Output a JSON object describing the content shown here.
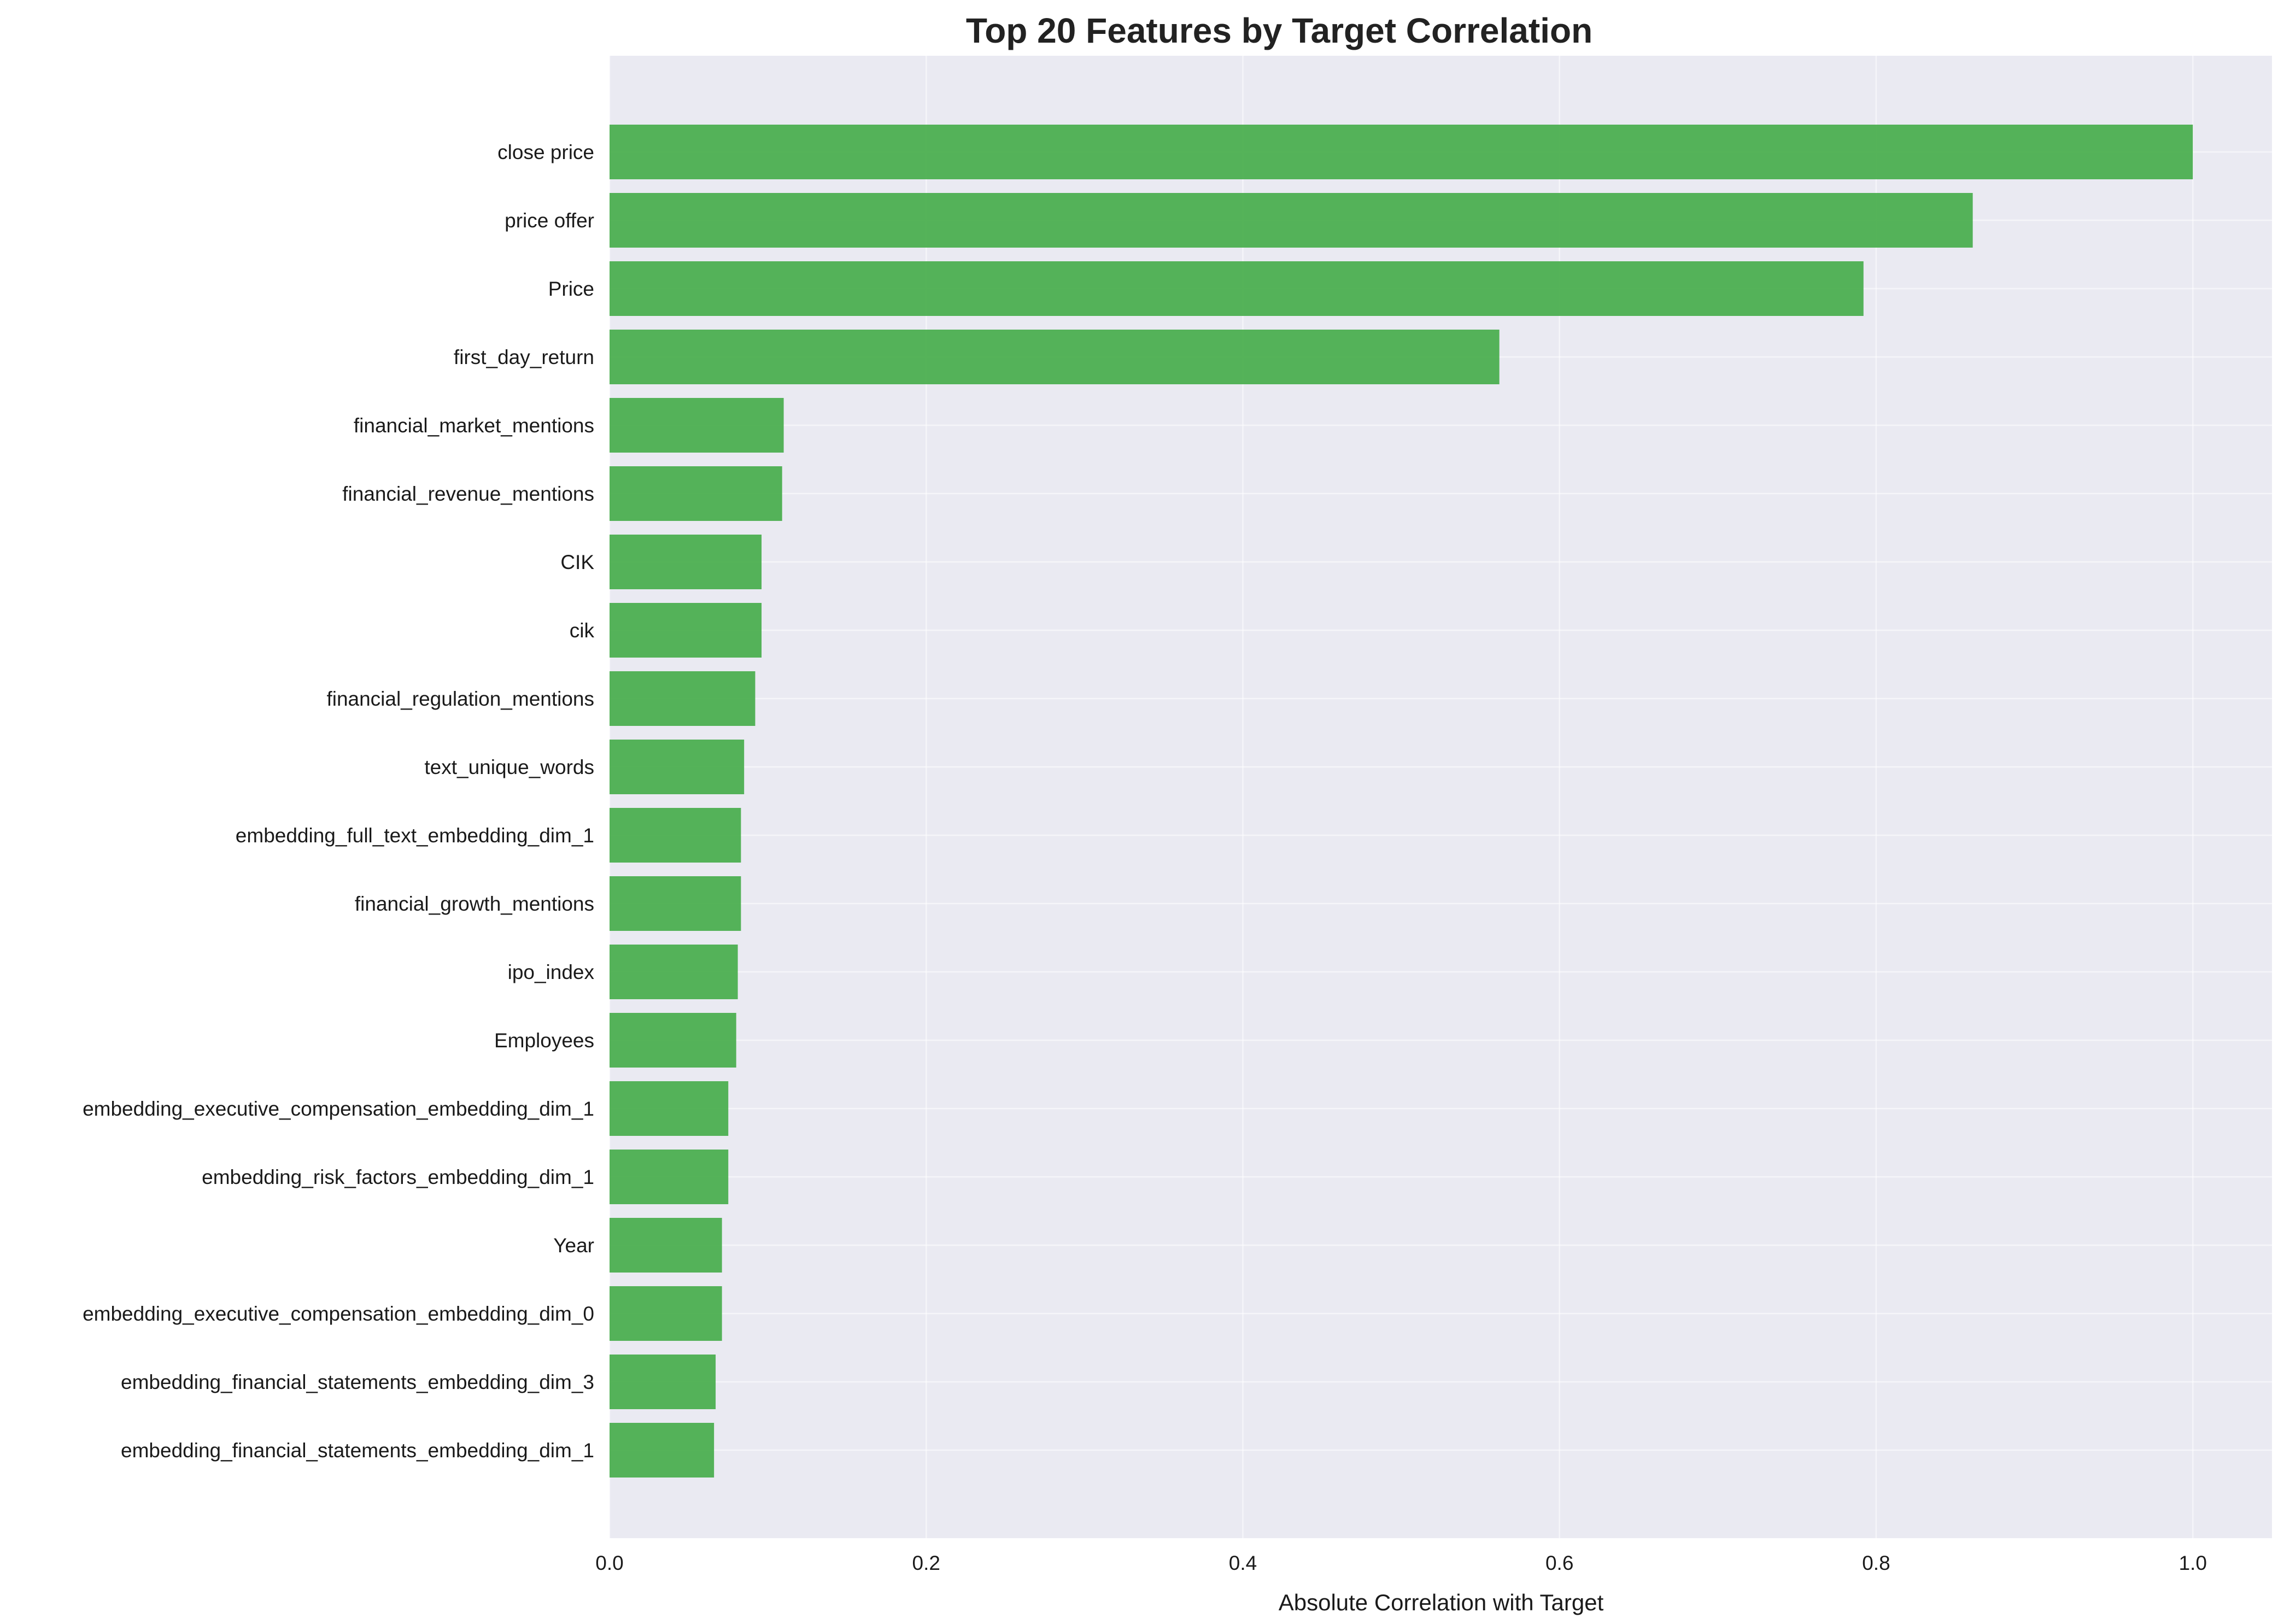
{
  "chart_data": {
    "type": "bar",
    "orientation": "horizontal",
    "title": "Top 20 Features by Target Correlation",
    "xlabel": "Absolute Correlation with Target",
    "ylabel": "",
    "xlim": [
      0,
      1.05
    ],
    "xticks": [
      "0.0",
      "0.2",
      "0.4",
      "0.6",
      "0.8",
      "1.0"
    ],
    "grid": true,
    "bar_color": "#4caf50",
    "background_color": "#eaeaf2",
    "categories": [
      "close price",
      "price offer",
      "Price",
      "first_day_return",
      "financial_market_mentions",
      "financial_revenue_mentions",
      "CIK",
      "cik",
      "financial_regulation_mentions",
      "text_unique_words",
      "embedding_full_text_embedding_dim_1",
      "financial_growth_mentions",
      "ipo_index",
      "Employees",
      "embedding_executive_compensation_embedding_dim_1",
      "embedding_risk_factors_embedding_dim_1",
      "Year",
      "embedding_executive_compensation_embedding_dim_0",
      "embedding_financial_statements_embedding_dim_3",
      "embedding_financial_statements_embedding_dim_1"
    ],
    "values": [
      1.0,
      0.861,
      0.792,
      0.562,
      0.11,
      0.109,
      0.096,
      0.096,
      0.092,
      0.085,
      0.083,
      0.083,
      0.081,
      0.08,
      0.075,
      0.075,
      0.071,
      0.071,
      0.067,
      0.066
    ]
  }
}
